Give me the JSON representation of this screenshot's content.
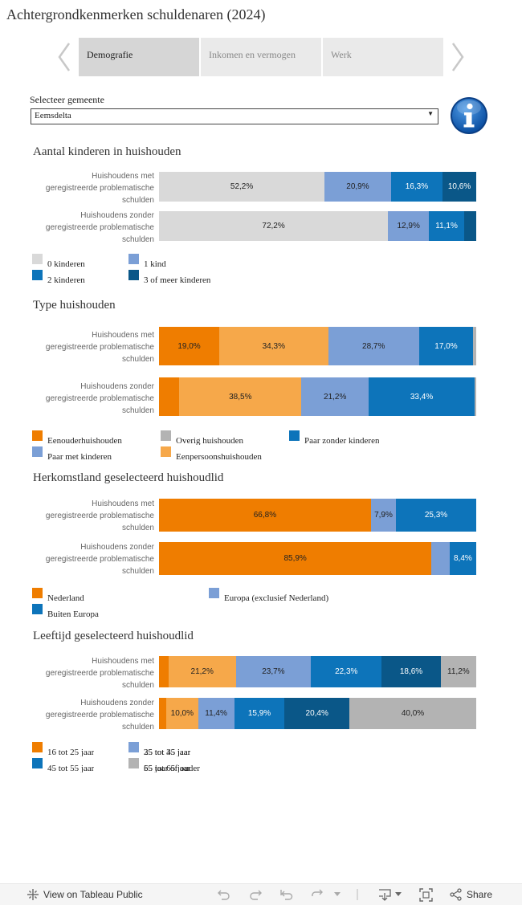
{
  "title": "Achtergrondkenmerken schuldenaren (2024)",
  "tabs": [
    {
      "label": "Demografie",
      "active": true
    },
    {
      "label": "Inkomen en vermogen",
      "active": false
    },
    {
      "label": "Werk",
      "active": false
    }
  ],
  "selector": {
    "label": "Selecteer gemeente",
    "value": "Eemsdelta"
  },
  "colors": {
    "light_gray": "#d9d9d9",
    "light_blue": "#7b9fd6",
    "mid_blue": "#0d74ba",
    "dark_blue": "#0a5788",
    "orange": "#ef7d00",
    "light_orange": "#f6a84a",
    "gray": "#b3b3b3"
  },
  "chart_data": [
    {
      "type": "bar",
      "title": "Aantal kinderen in huishouden",
      "categories": [
        "Huishoudens met geregistreerde problematische schulden",
        "Huishoudens zonder geregistreerde problematische schulden"
      ],
      "category_lines": [
        [
          "Huishoudens met",
          "geregistreerde problematische",
          "schulden"
        ],
        [
          "Huishoudens zonder",
          "geregistreerde problematische",
          "schulden"
        ]
      ],
      "series": [
        {
          "name": "0 kinderen",
          "color": "#d9d9d9",
          "values": [
            52.2,
            72.2
          ],
          "labels": [
            "52,2%",
            "72,2%"
          ]
        },
        {
          "name": "1 kind",
          "color": "#7b9fd6",
          "values": [
            20.9,
            12.9
          ],
          "labels": [
            "20,9%",
            "12,9%"
          ]
        },
        {
          "name": "2 kinderen",
          "color": "#0d74ba",
          "values": [
            16.3,
            11.1
          ],
          "labels": [
            "16,3%",
            "11,1%"
          ]
        },
        {
          "name": "3 of meer kinderen",
          "color": "#0a5788",
          "values": [
            10.6,
            3.8
          ],
          "labels": [
            "10,6%",
            ""
          ]
        }
      ],
      "legend_order": [
        0,
        2,
        1,
        3
      ]
    },
    {
      "type": "bar",
      "title": "Type huishouden",
      "categories": [
        "Huishoudens met geregistreerde problematische schulden",
        "Huishoudens zonder geregistreerde problematische schulden"
      ],
      "category_lines": [
        [
          "Huishoudens met",
          "geregistreerde problematische",
          "schulden"
        ],
        [
          "Huishoudens zonder",
          "geregistreerde problematische",
          "schulden"
        ]
      ],
      "series": [
        {
          "name": "Eenouderhuishouden",
          "color": "#ef7d00",
          "values": [
            19.0,
            6.4
          ],
          "labels": [
            "19,0%",
            ""
          ]
        },
        {
          "name": "Eenpersoonshuishouden",
          "color": "#f6a84a",
          "values": [
            34.3,
            38.5
          ],
          "labels": [
            "34,3%",
            "38,5%"
          ]
        },
        {
          "name": "Paar met kinderen",
          "color": "#7b9fd6",
          "values": [
            28.7,
            21.2
          ],
          "labels": [
            "28,7%",
            "21,2%"
          ]
        },
        {
          "name": "Paar zonder kinderen",
          "color": "#0d74ba",
          "values": [
            17.0,
            33.4
          ],
          "labels": [
            "17,0%",
            "33,4%"
          ]
        },
        {
          "name": "Overig huishouden",
          "color": "#b3b3b3",
          "values": [
            1.0,
            0.5
          ],
          "labels": [
            "",
            ""
          ]
        }
      ],
      "legend_order": [
        0,
        2,
        4,
        1,
        3
      ]
    },
    {
      "type": "bar",
      "title": "Herkomstland geselecteerd huishoudlid",
      "categories": [
        "Huishoudens met geregistreerde problematische schulden",
        "Huishoudens zonder geregistreerde problematische schulden"
      ],
      "category_lines": [
        [
          "Huishoudens met",
          "geregistreerde problematische",
          "schulden"
        ],
        [
          "Huishoudens zonder",
          "geregistreerde problematische",
          "schulden"
        ]
      ],
      "series": [
        {
          "name": "Nederland",
          "color": "#ef7d00",
          "values": [
            66.8,
            85.9
          ],
          "labels": [
            "66,8%",
            "85,9%"
          ]
        },
        {
          "name": "Europa (exclusief Nederland)",
          "color": "#7b9fd6",
          "values": [
            7.9,
            5.7
          ],
          "labels": [
            "7,9%",
            ""
          ]
        },
        {
          "name": "Buiten Europa",
          "color": "#0d74ba",
          "values": [
            25.3,
            8.4
          ],
          "labels": [
            "25,3%",
            "8,4%"
          ]
        }
      ],
      "legend_order": [
        0,
        2,
        1
      ]
    },
    {
      "type": "bar",
      "title": "Leeftijd geselecteerd huishoudlid",
      "categories": [
        "Huishoudens met geregistreerde problematische schulden",
        "Huishoudens zonder geregistreerde problematische schulden"
      ],
      "category_lines": [
        [
          "Huishoudens met",
          "geregistreerde problematische",
          "schulden"
        ],
        [
          "Huishoudens zonder",
          "geregistreerde problematische",
          "schulden"
        ]
      ],
      "series": [
        {
          "name": "16 tot 25 jaar",
          "color": "#ef7d00",
          "values": [
            3.0,
            2.3
          ],
          "labels": [
            "",
            ""
          ]
        },
        {
          "name": "25 tot 35 jaar",
          "color": "#f6a84a",
          "values": [
            21.2,
            10.0
          ],
          "labels": [
            "21,2%",
            "10,0%"
          ]
        },
        {
          "name": "35 tot 45 jaar",
          "color": "#7b9fd6",
          "values": [
            23.7,
            11.4
          ],
          "labels": [
            "23,7%",
            "11,4%"
          ]
        },
        {
          "name": "45 tot 55 jaar",
          "color": "#0d74ba",
          "values": [
            22.3,
            15.9
          ],
          "labels": [
            "22,3%",
            "15,9%"
          ]
        },
        {
          "name": "55 tot 65 jaar",
          "color": "#0a5788",
          "values": [
            18.6,
            20.4
          ],
          "labels": [
            "18,6%",
            "20,4%"
          ]
        },
        {
          "name": "65 jaar of ouder",
          "color": "#b3b3b3",
          "values": [
            11.2,
            40.0
          ],
          "labels": [
            "11,2%",
            "40,0%"
          ]
        }
      ],
      "legend_order": [
        0,
        3,
        1,
        4,
        2,
        5
      ]
    }
  ],
  "footer": {
    "tableau_label": "View on Tableau Public",
    "share_label": "Share"
  }
}
